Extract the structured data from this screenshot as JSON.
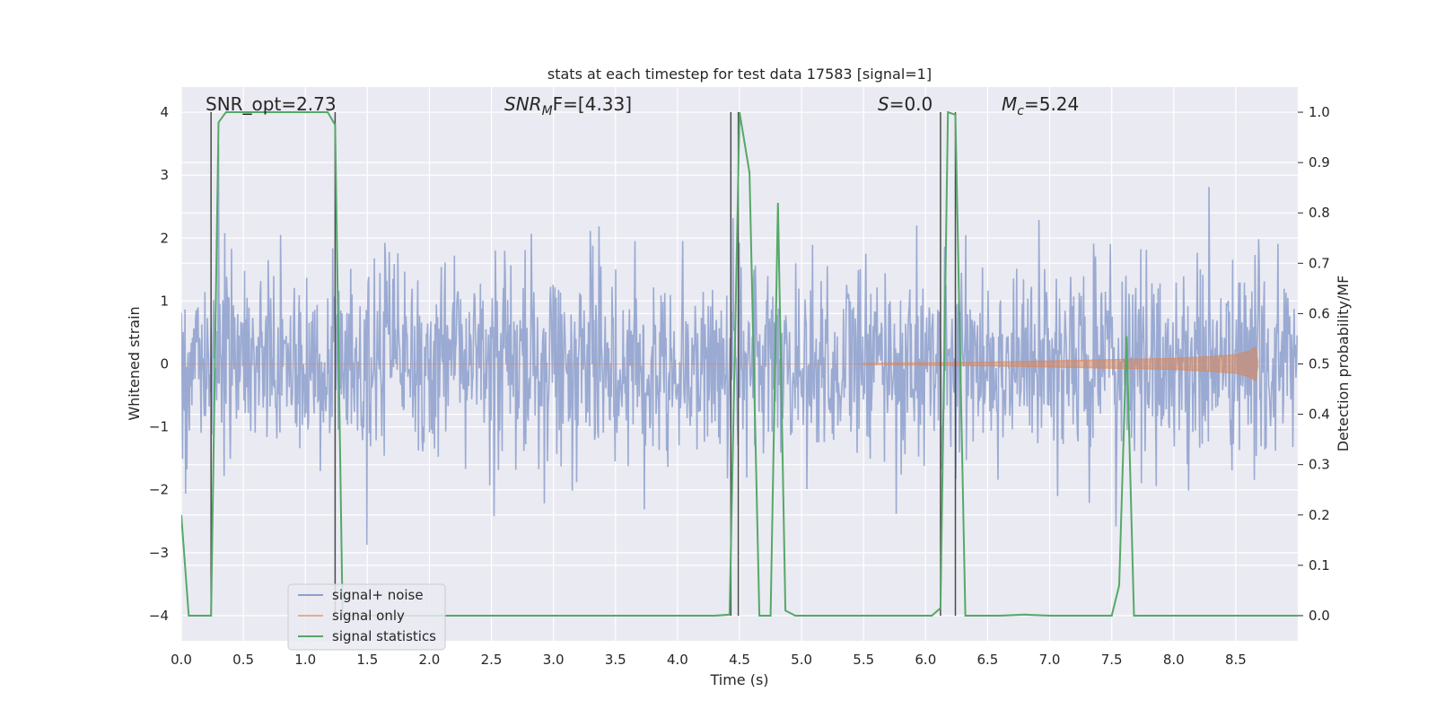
{
  "chart_data": {
    "type": "line",
    "title": "stats at each timestep for test data 17583 [signal=1]",
    "xlabel": "Time (s)",
    "ylabel_left": "Whitened strain",
    "ylabel_right": "Detection probability/MF",
    "xlim": [
      0,
      9.0
    ],
    "ylim_left": [
      -4.4,
      4.4
    ],
    "ylim_right": [
      -0.05,
      1.05
    ],
    "x_ticks": [
      0,
      0.5,
      1.0,
      1.5,
      2.0,
      2.5,
      3.0,
      3.5,
      4.0,
      4.5,
      5.0,
      5.5,
      6.0,
      6.5,
      7.0,
      7.5,
      8.0,
      8.5
    ],
    "x_tick_labels": [
      "0.0",
      "0.5",
      "1.0",
      "1.5",
      "2.0",
      "2.5",
      "3.0",
      "3.5",
      "4.0",
      "4.5",
      "5.0",
      "5.5",
      "6.0",
      "6.5",
      "7.0",
      "7.5",
      "8.0",
      "8.5"
    ],
    "y_left_ticks": [
      -4,
      -3,
      -2,
      -1,
      0,
      1,
      2,
      3,
      4
    ],
    "y_left_tick_labels": [
      "−4",
      "−3",
      "−2",
      "−1",
      "0",
      "1",
      "2",
      "3",
      "4"
    ],
    "y_right_ticks": [
      0.0,
      0.1,
      0.2,
      0.3,
      0.4,
      0.5,
      0.6,
      0.7,
      0.8,
      0.9,
      1.0
    ],
    "y_right_tick_labels": [
      "0.0",
      "0.1",
      "0.2",
      "0.3",
      "0.4",
      "0.5",
      "0.6",
      "0.7",
      "0.8",
      "0.9",
      "1.0"
    ],
    "grid": true,
    "legend_position": "lower-left",
    "legend": [
      "signal+ noise",
      "signal only",
      "signal statistics"
    ],
    "annotations": {
      "snr_opt": "SNR_opt=2.73",
      "snr_mf_name": "SNR",
      "snr_mf_sub": "M",
      "snr_mf_rest": "F=[4.33]",
      "s_name": "S",
      "s_rest": "=0.0",
      "mc_name": "M",
      "mc_sub": "c",
      "mc_rest": "=5.24"
    },
    "series": [
      {
        "name": "signal+ noise",
        "axis": "left",
        "color": "#8c9fcc",
        "noise_std": 0.8,
        "x_range": [
          0,
          9.0
        ],
        "samples": 1800
      },
      {
        "name": "signal only",
        "axis": "left",
        "color": "#dd8452",
        "envelope_x": [
          5.5,
          6.0,
          6.5,
          7.0,
          7.5,
          8.0,
          8.3,
          8.5,
          8.6,
          8.66,
          8.68
        ],
        "envelope_amp": [
          0.01,
          0.02,
          0.03,
          0.05,
          0.07,
          0.09,
          0.12,
          0.15,
          0.2,
          0.27,
          0.03
        ]
      },
      {
        "name": "signal statistics",
        "axis": "right",
        "color": "#55a868",
        "x": [
          0.0,
          0.06,
          0.12,
          0.18,
          0.24,
          0.3,
          0.36,
          0.42,
          0.5,
          0.6,
          0.8,
          1.0,
          1.18,
          1.24,
          1.3,
          1.36,
          1.45,
          1.6,
          2.0,
          2.5,
          3.0,
          3.5,
          4.0,
          4.3,
          4.42,
          4.5,
          4.58,
          4.66,
          4.75,
          4.81,
          4.87,
          4.95,
          5.2,
          5.5,
          5.8,
          6.05,
          6.12,
          6.18,
          6.24,
          6.32,
          6.4,
          6.6,
          6.8,
          7.0,
          7.3,
          7.5,
          7.56,
          7.62,
          7.68,
          7.8,
          8.2,
          8.6,
          9.0
        ],
        "y": [
          0.2,
          0.0,
          0.0,
          0.0,
          0.0,
          0.98,
          1.0,
          1.0,
          1.0,
          1.0,
          1.0,
          1.0,
          1.0,
          0.975,
          0.0,
          0.0,
          0.0,
          0.0,
          0.0,
          0.0,
          0.0,
          0.0,
          0.0,
          0.0,
          0.002,
          1.0,
          0.88,
          0.0,
          0.0,
          0.82,
          0.01,
          0.0,
          0.0,
          0.0,
          0.0,
          0.0,
          0.015,
          1.0,
          0.995,
          0.0,
          0.0,
          0.0,
          0.002,
          0.0,
          0.0,
          0.0,
          0.06,
          0.555,
          0.0,
          0.0,
          0.0,
          0.0,
          0.0
        ]
      }
    ],
    "vertical_lines": [
      0.24,
      1.24,
      4.43,
      4.49,
      6.12,
      6.24
    ],
    "vertical_line_color": "#4a4a4a"
  }
}
